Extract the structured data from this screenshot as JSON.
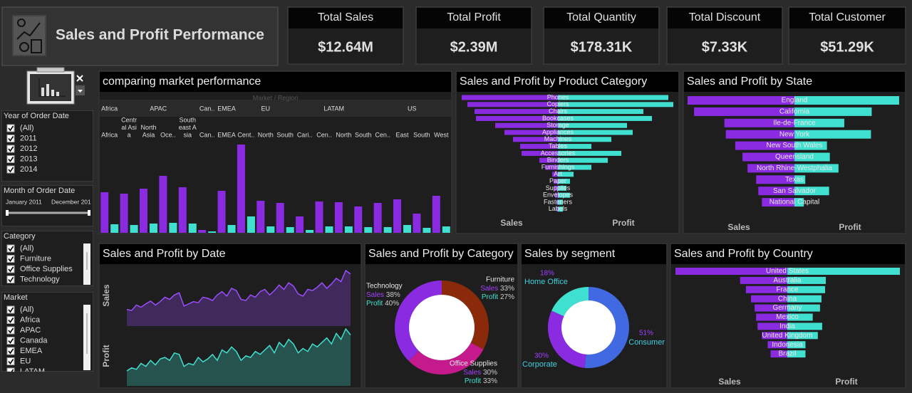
{
  "header": {
    "title": "Sales and Profit Performance"
  },
  "kpis": [
    {
      "label": "Total Sales",
      "value": "$12.64M"
    },
    {
      "label": "Total Profit",
      "value": "$2.39M"
    },
    {
      "label": "Total Quantity",
      "value": "$178.31K"
    },
    {
      "label": "Total Discount",
      "value": "$7.33K"
    },
    {
      "label": "Total Customer",
      "value": "$51.29K"
    }
  ],
  "filters": [
    {
      "title": "Year of Order Date",
      "items": [
        "(All)",
        "2011",
        "2012",
        "2013",
        "2014"
      ]
    },
    {
      "title": "Month of Order Date",
      "start": "January 2011",
      "end": "December 201"
    },
    {
      "title": "Category",
      "items": [
        "(All)",
        "Furniture",
        "Office Supplies",
        "Technology"
      ]
    },
    {
      "title": "Market",
      "items": [
        "(All)",
        "Africa",
        "APAC",
        "Canada",
        "EMEA",
        "EU",
        "LATAM"
      ]
    }
  ],
  "charts": [
    {
      "type": "bar",
      "title": "comparing market performance",
      "header_label": "Market / Region",
      "markets": [
        {
          "name": "Africa",
          "regions": [
            "Africa"
          ]
        },
        {
          "name": "APAC",
          "regions": [
            [
              "Centr",
              "al Asi",
              "a"
            ],
            [
              "North",
              "Asia"
            ],
            "Oce..",
            [
              "South",
              "east A",
              "sia"
            ]
          ]
        },
        {
          "name": "Can..",
          "regions": [
            "Can.."
          ]
        },
        {
          "name": "EMEA",
          "regions": [
            "EMEA"
          ]
        },
        {
          "name": "EU",
          "regions": [
            "Cent..",
            "North",
            "South"
          ]
        },
        {
          "name": "LATAM",
          "regions": [
            "Cari..",
            "Cen..",
            "North",
            "South"
          ]
        },
        {
          "name": "US",
          "regions": [
            "Cen..",
            "East",
            "South",
            "West"
          ]
        }
      ],
      "series": [
        {
          "color": "#8a2be2",
          "values": [
            57,
            55,
            62,
            80,
            64,
            4,
            59,
            124,
            45,
            42,
            23,
            44,
            43,
            37,
            42,
            47,
            27,
            52
          ]
        },
        {
          "color": "#40e0d0",
          "values": [
            12,
            11,
            13,
            14,
            13,
            2,
            11,
            23,
            9,
            8,
            4,
            9,
            9,
            8,
            8,
            11,
            7,
            9
          ]
        }
      ]
    },
    {
      "type": "diverging_bar",
      "title": "Sales and Profit by Product Category",
      "categories": [
        "Phones",
        "Copiers",
        "Chairs",
        "Bookcases",
        "Storage",
        "Appliances",
        "Machines",
        "Tables",
        "Accessories",
        "Binders",
        "Furnishings",
        "Art",
        "Paper",
        "Supplies",
        "Envelopes",
        "Fasteners",
        "Labels"
      ],
      "series": [
        {
          "name": "Sales",
          "color": "#8a2be2",
          "values": [
            135,
            127,
            117,
            115,
            88,
            75,
            63,
            53,
            51,
            26,
            18,
            8,
            6,
            5,
            4,
            2,
            2
          ]
        },
        {
          "name": "Profit",
          "color": "#40e0d0",
          "values": [
            155,
            162,
            120,
            132,
            97,
            105,
            75,
            47,
            89,
            70,
            47,
            22,
            17,
            12,
            17,
            7,
            7
          ]
        }
      ]
    },
    {
      "type": "diverging_bar",
      "title": "Sales and Profit by State",
      "categories": [
        "England",
        "California",
        "Ile-de-France",
        "New York",
        "New South Wales",
        "Queensland",
        "North Rhine-Westphalia",
        "Texas",
        "San Salvador",
        "National Capital"
      ],
      "series": [
        {
          "name": "Sales",
          "color": "#8a2be2",
          "values": [
            148,
            139,
            97,
            95,
            82,
            72,
            65,
            53,
            50,
            45
          ]
        },
        {
          "name": "Profit",
          "color": "#40e0d0",
          "values": [
            145,
            107,
            69,
            106,
            45,
            49,
            61,
            15,
            48,
            13
          ]
        }
      ]
    },
    {
      "type": "area",
      "title": "Sales and Profit by Date",
      "series": [
        {
          "name": "Sales",
          "color": "#9b4dff",
          "values": [
            30,
            28,
            38,
            34,
            40,
            45,
            38,
            44,
            52,
            48,
            56,
            60,
            36,
            40,
            44,
            42,
            52,
            50,
            46,
            56,
            62,
            54,
            68,
            64,
            48,
            46,
            56,
            52,
            62,
            66,
            56,
            64,
            74,
            66,
            78,
            72,
            58,
            54,
            66,
            64,
            70,
            78,
            68,
            76,
            86,
            80,
            100,
            94
          ]
        },
        {
          "name": "Profit",
          "color": "#40e0d0",
          "values": [
            20,
            24,
            22,
            30,
            26,
            34,
            28,
            36,
            38,
            34,
            44,
            42,
            26,
            30,
            28,
            38,
            32,
            36,
            42,
            34,
            48,
            44,
            52,
            46,
            34,
            40,
            38,
            46,
            42,
            48,
            54,
            44,
            58,
            52,
            62,
            56,
            44,
            50,
            46,
            56,
            52,
            58,
            64,
            56,
            70,
            62,
            76,
            68
          ]
        }
      ]
    },
    {
      "type": "donut",
      "title": "Sales and Profit by Category",
      "measure_names": [
        "Sales",
        "Profit"
      ],
      "slices": [
        {
          "name": "Furniture",
          "color": "#8b2a0a",
          "sales": 33,
          "sales_label": "33%",
          "profit": 27,
          "profit_label": "27%"
        },
        {
          "name": "Office Supplies",
          "color": "#c41a8c",
          "sales": 30,
          "sales_label": "30%",
          "profit": 33,
          "profit_label": "33%"
        },
        {
          "name": "Technology",
          "color": "#8a2be2",
          "sales": 38,
          "sales_label": "38%",
          "profit": 40,
          "profit_label": "40%"
        }
      ]
    },
    {
      "type": "donut",
      "title": "Sales by segment",
      "slices": [
        {
          "name": "Consumer",
          "color": "#4169e1",
          "value": 51,
          "value_label": "51%"
        },
        {
          "name": "Corporate",
          "color": "#8a2be2",
          "value": 30,
          "value_label": "30%"
        },
        {
          "name": "Home Office",
          "color": "#40e0d0",
          "value": 18,
          "value_label": "18%"
        }
      ]
    },
    {
      "type": "diverging_bar",
      "title": "Sales and Profit by Country",
      "categories": [
        "United States",
        "Australia",
        "France",
        "China",
        "Germany",
        "Mexico",
        "India",
        "United Kingdom",
        "Indonesia",
        "Brazil"
      ],
      "series": [
        {
          "name": "Sales",
          "color": "#8a2be2",
          "values": [
            154,
            65,
            57,
            50,
            45,
            43,
            41,
            35,
            27,
            23
          ]
        },
        {
          "name": "Profit",
          "color": "#40e0d0",
          "values": [
            155,
            53,
            52,
            47,
            45,
            35,
            48,
            42,
            25,
            25
          ]
        }
      ]
    }
  ]
}
